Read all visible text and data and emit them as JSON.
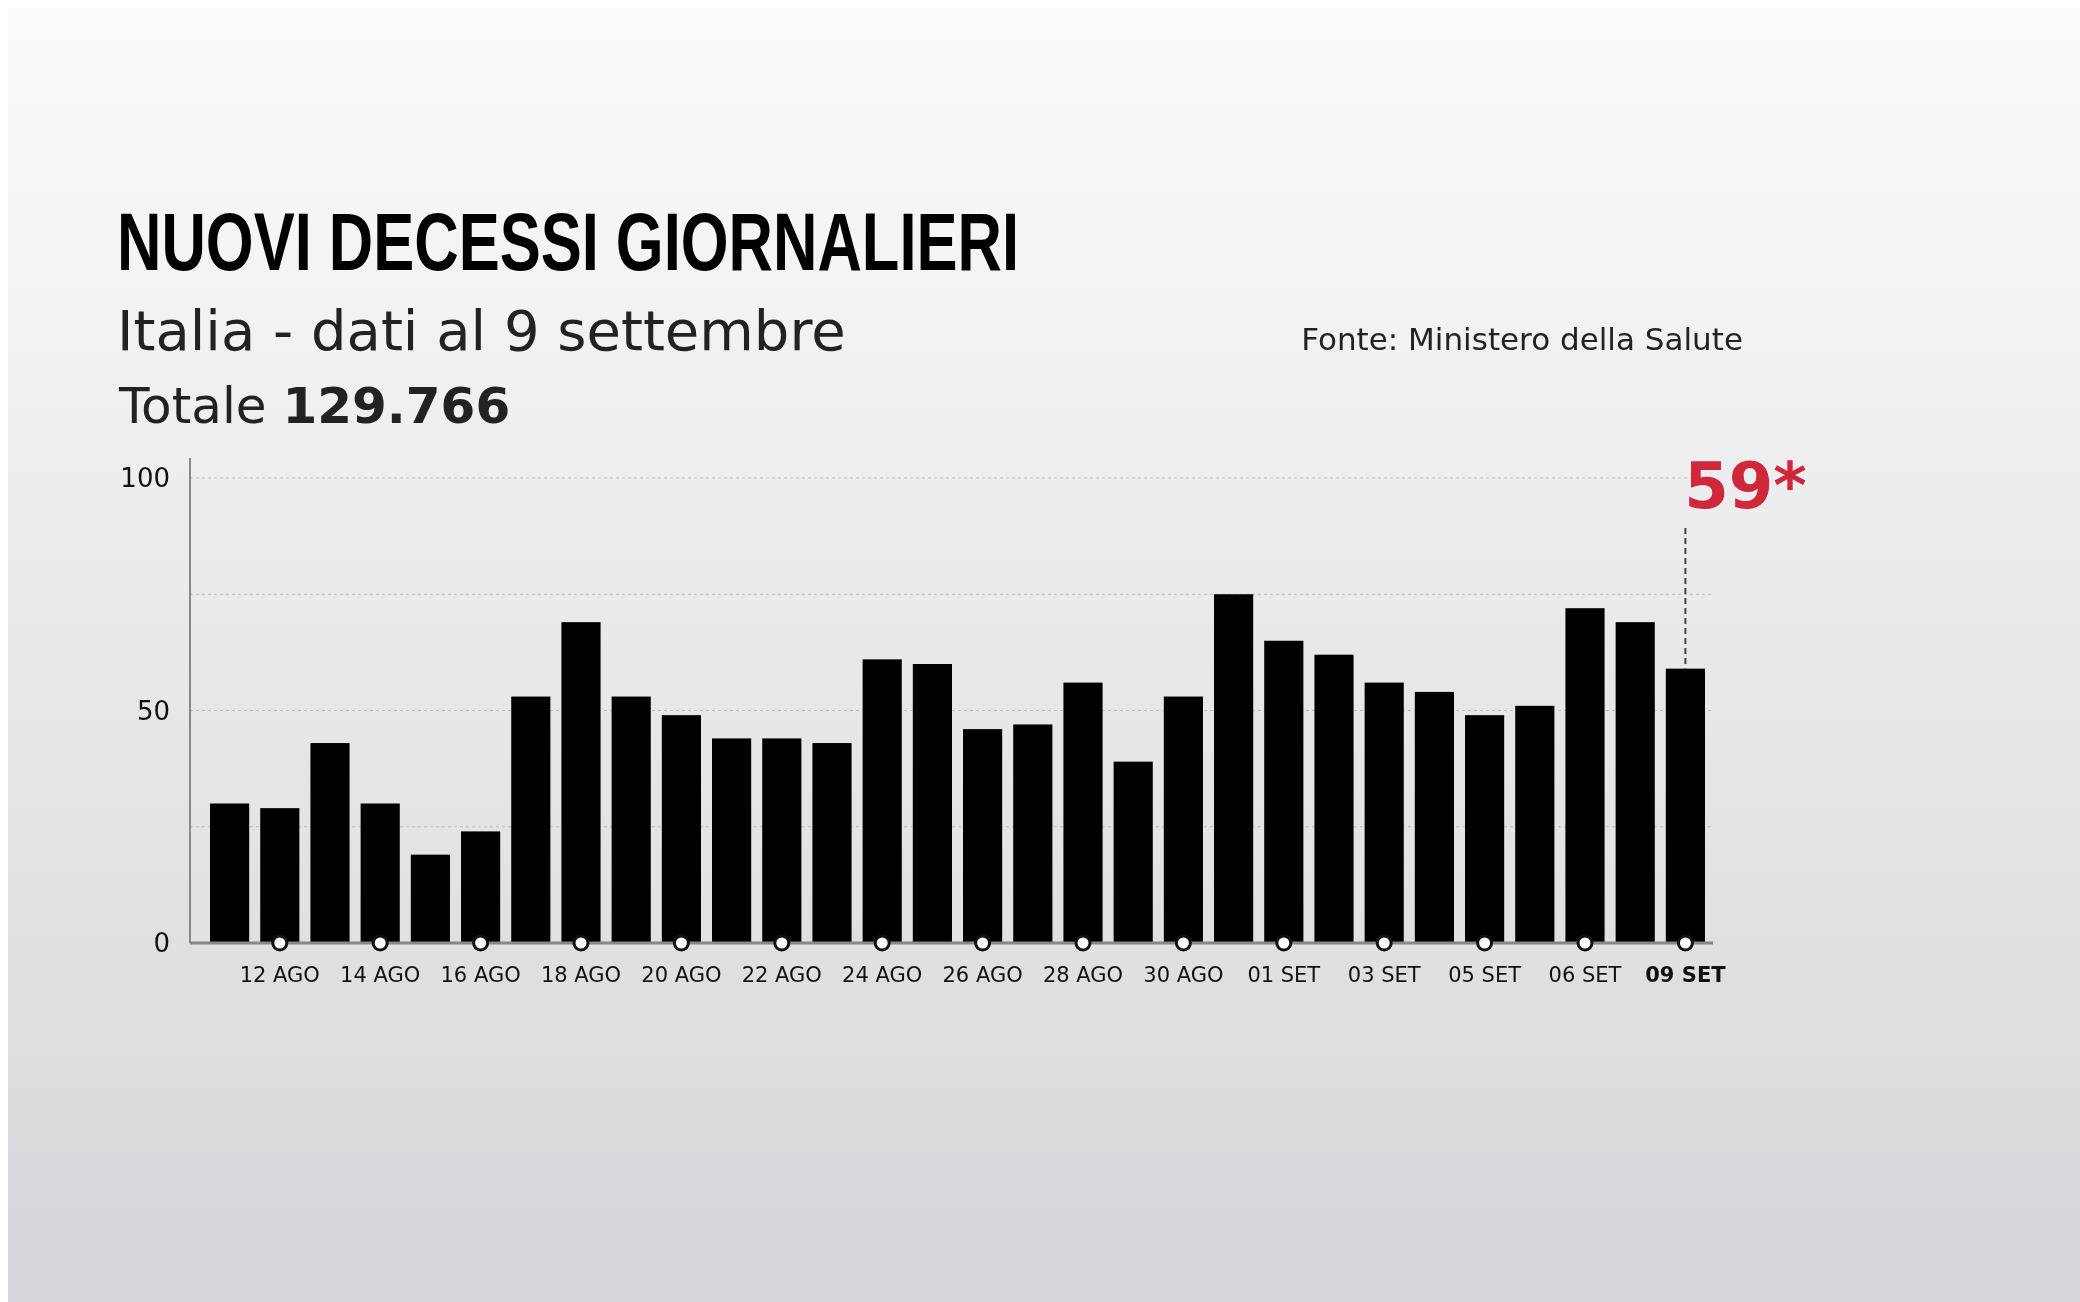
{
  "chart_data": {
    "type": "bar",
    "title": "NUOVI DECESSI GIORNALIERI",
    "subtitle": "Italia - dati al 9 settembre",
    "annotations": [
      "Totale 129.766",
      "Fonte: Ministero della Salute",
      {
        "text": "59*",
        "x": "09 SET",
        "y": 59
      }
    ],
    "categories": [
      null,
      "12 AGO",
      null,
      "14 AGO",
      null,
      "16 AGO",
      null,
      "18 AGO",
      null,
      "20 AGO",
      null,
      "22 AGO",
      null,
      "24 AGO",
      null,
      "26 AGO",
      null,
      "28 AGO",
      null,
      "30 AGO",
      null,
      "01 SET",
      null,
      "03 SET",
      null,
      "05 SET",
      null,
      "06 SET",
      null,
      "09 SET"
    ],
    "values": [
      30,
      29,
      43,
      30,
      19,
      24,
      53,
      69,
      53,
      49,
      44,
      44,
      43,
      61,
      60,
      46,
      47,
      56,
      39,
      53,
      75,
      65,
      62,
      56,
      54,
      49,
      51,
      72,
      69,
      59
    ],
    "color": "#000000",
    "ylim": [
      0,
      100
    ],
    "yticks": [
      0,
      {
        "value": 25,
        "label": null
      },
      50,
      {
        "value": 75,
        "label": null
      },
      100
    ],
    "grid": "y"
  }
}
